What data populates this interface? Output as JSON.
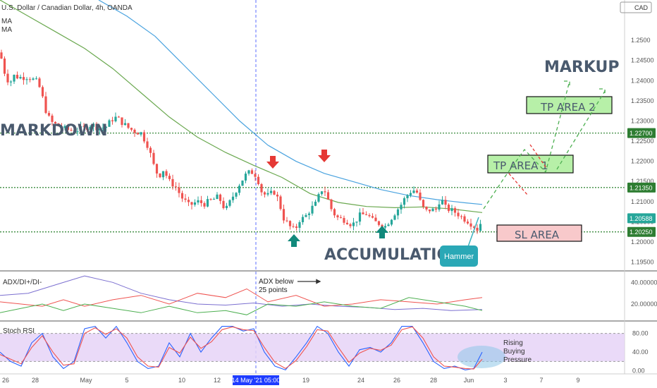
{
  "header": {
    "title": "U.S. Dollar / Canadian Dollar, 4h, OANDA",
    "indicator_1": "MA",
    "indicator_2": "MA",
    "currency": "CAD"
  },
  "annotations": {
    "markdown": "MARKDOWN",
    "accumulation": "ACCUMULATION",
    "markup": "MARKUP",
    "tp1": "TP AREA 1",
    "tp2": "TP AREA 2",
    "sl": "SL AREA",
    "hammer": "Hammer",
    "adx_note_1": "ADX below",
    "adx_note_2": "25 points",
    "rsi_note_1": "Rising",
    "rsi_note_2": "Buying",
    "rsi_note_3": "Pressure"
  },
  "colors": {
    "up": "#26a69a",
    "down": "#ef5350",
    "ma_fast": "#6aa84f",
    "ma_slow": "#4aa3df",
    "level_line": "#3d8c40",
    "tp_fill": "#b7f0a8",
    "sl_fill": "#f8c9cb",
    "stoch_band": "#e6d3f7",
    "accent": "#1e3cff"
  },
  "chart_data": [
    {
      "type": "candlestick",
      "pair": "USD/CAD",
      "timeframe": "4h",
      "ylim": [
        1.193,
        1.26
      ],
      "y_ticks": [
        "1.2500",
        "1.24500",
        "1.24000",
        "1.23500",
        "1.23000",
        "1.22500",
        "1.22000",
        "1.21500",
        "1.21000",
        "1.20500",
        "1.20000",
        "1.19500"
      ],
      "x_ticks": [
        "26",
        "28",
        "May",
        "5",
        "10",
        "12",
        "14 May '21  05:00",
        "19",
        "24",
        "26",
        "28",
        "Jun",
        "3",
        "7",
        "9"
      ],
      "levels": [
        {
          "label": "1.22700",
          "value": 1.227
        },
        {
          "label": "1.21350",
          "value": 1.2135
        },
        {
          "label": "1.20250",
          "value": 1.2025
        }
      ],
      "last_price": {
        "label": "1.20588",
        "value": 1.20588
      },
      "close_path": [
        [
          0,
          1.247
        ],
        [
          8,
          1.241
        ],
        [
          14,
          1.2395
        ],
        [
          20,
          1.2412
        ],
        [
          28,
          1.2408
        ],
        [
          40,
          1.241
        ],
        [
          54,
          1.2395
        ],
        [
          60,
          1.236
        ],
        [
          66,
          1.232
        ],
        [
          72,
          1.2298
        ],
        [
          80,
          1.229
        ],
        [
          95,
          1.2278
        ],
        [
          110,
          1.2278
        ],
        [
          120,
          1.2282
        ],
        [
          130,
          1.2292
        ],
        [
          140,
          1.2282
        ],
        [
          150,
          1.2285
        ],
        [
          162,
          1.231
        ],
        [
          170,
          1.2302
        ],
        [
          180,
          1.2285
        ],
        [
          190,
          1.2275
        ],
        [
          200,
          1.227
        ],
        [
          210,
          1.2238
        ],
        [
          218,
          1.219
        ],
        [
          225,
          1.2162
        ],
        [
          232,
          1.218
        ],
        [
          240,
          1.215
        ],
        [
          248,
          1.214
        ],
        [
          258,
          1.211
        ],
        [
          268,
          1.209
        ],
        [
          280,
          1.21
        ],
        [
          290,
          1.2095
        ],
        [
          300,
          1.2103
        ],
        [
          310,
          1.2112
        ],
        [
          320,
          1.2078
        ],
        [
          330,
          1.2112
        ],
        [
          340,
          1.2145
        ],
        [
          348,
          1.2165
        ],
        [
          356,
          1.2175
        ],
        [
          364,
          1.2165
        ],
        [
          372,
          1.212
        ],
        [
          380,
          1.2115
        ],
        [
          390,
          1.2125
        ],
        [
          396,
          1.2098
        ],
        [
          402,
          1.206
        ],
        [
          410,
          1.204
        ],
        [
          418,
          1.2028
        ],
        [
          425,
          1.2055
        ],
        [
          432,
          1.206
        ],
        [
          440,
          1.208
        ],
        [
          448,
          1.2095
        ],
        [
          456,
          1.213
        ],
        [
          462,
          1.2125
        ],
        [
          468,
          1.2088
        ],
        [
          474,
          1.207
        ],
        [
          480,
          1.2058
        ],
        [
          490,
          1.2055
        ],
        [
          500,
          1.2042
        ],
        [
          510,
          1.2065
        ],
        [
          520,
          1.207
        ],
        [
          530,
          1.205
        ],
        [
          540,
          1.2045
        ],
        [
          546,
          1.2038
        ],
        [
          552,
          1.2052
        ],
        [
          560,
          1.2072
        ],
        [
          568,
          1.209
        ],
        [
          575,
          1.211
        ],
        [
          582,
          1.2125
        ],
        [
          590,
          1.213
        ],
        [
          596,
          1.21
        ],
        [
          603,
          1.2075
        ],
        [
          610,
          1.208
        ],
        [
          618,
          1.2078
        ],
        [
          625,
          1.211
        ],
        [
          632,
          1.2085
        ],
        [
          640,
          1.2078
        ],
        [
          648,
          1.2072
        ],
        [
          656,
          1.206
        ],
        [
          664,
          1.2052
        ],
        [
          672,
          1.204
        ],
        [
          678,
          1.203
        ],
        [
          684,
          1.2058
        ]
      ],
      "ma_fast_path": [
        [
          0,
          1.26
        ],
        [
          40,
          1.256
        ],
        [
          80,
          1.252
        ],
        [
          120,
          1.248
        ],
        [
          160,
          1.243
        ],
        [
          200,
          1.237
        ],
        [
          240,
          1.231
        ],
        [
          280,
          1.226
        ],
        [
          320,
          1.2222
        ],
        [
          360,
          1.219
        ],
        [
          400,
          1.216
        ],
        [
          440,
          1.212
        ],
        [
          480,
          1.2098
        ],
        [
          520,
          1.2088
        ],
        [
          560,
          1.2085
        ],
        [
          600,
          1.2087
        ],
        [
          640,
          1.2082
        ],
        [
          684,
          1.2073
        ]
      ],
      "ma_slow_path": [
        [
          140,
          1.26
        ],
        [
          180,
          1.256
        ],
        [
          220,
          1.251
        ],
        [
          260,
          1.244
        ],
        [
          300,
          1.237
        ],
        [
          340,
          1.23
        ],
        [
          380,
          1.224
        ],
        [
          420,
          1.22
        ],
        [
          460,
          1.217
        ],
        [
          500,
          1.215
        ],
        [
          540,
          1.213
        ],
        [
          580,
          1.2115
        ],
        [
          620,
          1.2105
        ],
        [
          660,
          1.2097
        ],
        [
          684,
          1.2093
        ]
      ]
    },
    {
      "type": "line",
      "title": "ADX/DI+/DI-",
      "ylim": [
        5,
        50
      ],
      "y_ticks": [
        {
          "label": "40.00000",
          "value": 40
        },
        {
          "label": "20.00000",
          "value": 20
        }
      ],
      "series": [
        {
          "color": "#7b6fd0",
          "points": [
            [
              0,
              28
            ],
            [
              40,
              30
            ],
            [
              80,
              38
            ],
            [
              120,
              46
            ],
            [
              160,
              40
            ],
            [
              200,
              30
            ],
            [
              240,
              24
            ],
            [
              280,
              20
            ],
            [
              320,
              19
            ],
            [
              360,
              21
            ],
            [
              400,
              18
            ],
            [
              440,
              20
            ],
            [
              480,
              18
            ],
            [
              520,
              17
            ],
            [
              560,
              15
            ],
            [
              600,
              16
            ],
            [
              640,
              14
            ],
            [
              684,
              15
            ]
          ]
        },
        {
          "color": "#ef5350",
          "points": [
            [
              0,
              22
            ],
            [
              30,
              20
            ],
            [
              60,
              18
            ],
            [
              90,
              24
            ],
            [
              120,
              18
            ],
            [
              160,
              24
            ],
            [
              200,
              28
            ],
            [
              240,
              20
            ],
            [
              280,
              30
            ],
            [
              320,
              26
            ],
            [
              350,
              34
            ],
            [
              380,
              22
            ],
            [
              420,
              28
            ],
            [
              460,
              18
            ],
            [
              500,
              20
            ],
            [
              540,
              24
            ],
            [
              580,
              22
            ],
            [
              620,
              20
            ],
            [
              660,
              24
            ],
            [
              684,
              26
            ]
          ]
        },
        {
          "color": "#4caf50",
          "points": [
            [
              0,
              12
            ],
            [
              30,
              16
            ],
            [
              60,
              20
            ],
            [
              90,
              14
            ],
            [
              120,
              20
            ],
            [
              160,
              16
            ],
            [
              200,
              12
            ],
            [
              240,
              18
            ],
            [
              280,
              12
            ],
            [
              320,
              14
            ],
            [
              350,
              10
            ],
            [
              380,
              20
            ],
            [
              420,
              18
            ],
            [
              460,
              22
            ],
            [
              500,
              18
            ],
            [
              540,
              16
            ],
            [
              580,
              26
            ],
            [
              620,
              22
            ],
            [
              660,
              18
            ],
            [
              684,
              14
            ]
          ]
        }
      ]
    },
    {
      "type": "line",
      "title": "Stoch RSI",
      "ylim": [
        -5,
        105
      ],
      "band": [
        20,
        80
      ],
      "y_ticks": [
        {
          "label": "80.00",
          "value": 80
        },
        {
          "label": "40.00",
          "value": 40
        },
        {
          "label": "0.00",
          "value": 0
        }
      ],
      "series": [
        {
          "color": "#2962ff",
          "points": [
            [
              0,
              40
            ],
            [
              15,
              20
            ],
            [
              30,
              10
            ],
            [
              45,
              60
            ],
            [
              60,
              80
            ],
            [
              75,
              30
            ],
            [
              90,
              5
            ],
            [
              105,
              20
            ],
            [
              120,
              90
            ],
            [
              135,
              95
            ],
            [
              150,
              70
            ],
            [
              165,
              95
            ],
            [
              180,
              60
            ],
            [
              195,
              20
            ],
            [
              210,
              5
            ],
            [
              225,
              10
            ],
            [
              240,
              60
            ],
            [
              255,
              30
            ],
            [
              270,
              80
            ],
            [
              285,
              40
            ],
            [
              300,
              70
            ],
            [
              315,
              95
            ],
            [
              330,
              95
            ],
            [
              345,
              85
            ],
            [
              360,
              90
            ],
            [
              375,
              40
            ],
            [
              390,
              10
            ],
            [
              405,
              2
            ],
            [
              420,
              30
            ],
            [
              435,
              60
            ],
            [
              450,
              95
            ],
            [
              465,
              80
            ],
            [
              480,
              40
            ],
            [
              495,
              10
            ],
            [
              510,
              45
            ],
            [
              525,
              50
            ],
            [
              540,
              40
            ],
            [
              555,
              60
            ],
            [
              570,
              95
            ],
            [
              585,
              95
            ],
            [
              600,
              60
            ],
            [
              615,
              20
            ],
            [
              630,
              5
            ],
            [
              645,
              10
            ],
            [
              660,
              2
            ],
            [
              672,
              5
            ],
            [
              684,
              40
            ]
          ]
        },
        {
          "color": "#ef5350",
          "points": [
            [
              0,
              35
            ],
            [
              15,
              25
            ],
            [
              30,
              15
            ],
            [
              45,
              50
            ],
            [
              60,
              75
            ],
            [
              75,
              40
            ],
            [
              90,
              12
            ],
            [
              105,
              15
            ],
            [
              120,
              80
            ],
            [
              135,
              92
            ],
            [
              150,
              78
            ],
            [
              165,
              90
            ],
            [
              180,
              70
            ],
            [
              195,
              30
            ],
            [
              210,
              10
            ],
            [
              225,
              8
            ],
            [
              240,
              50
            ],
            [
              255,
              38
            ],
            [
              270,
              72
            ],
            [
              285,
              48
            ],
            [
              300,
              62
            ],
            [
              315,
              88
            ],
            [
              330,
              94
            ],
            [
              345,
              88
            ],
            [
              360,
              86
            ],
            [
              375,
              50
            ],
            [
              390,
              18
            ],
            [
              405,
              5
            ],
            [
              420,
              22
            ],
            [
              435,
              52
            ],
            [
              450,
              88
            ],
            [
              465,
              85
            ],
            [
              480,
              50
            ],
            [
              495,
              18
            ],
            [
              510,
              38
            ],
            [
              525,
              48
            ],
            [
              540,
              44
            ],
            [
              555,
              55
            ],
            [
              570,
              88
            ],
            [
              585,
              94
            ],
            [
              600,
              70
            ],
            [
              615,
              30
            ],
            [
              630,
              10
            ],
            [
              645,
              8
            ],
            [
              660,
              5
            ],
            [
              672,
              4
            ],
            [
              684,
              25
            ]
          ]
        }
      ]
    }
  ]
}
